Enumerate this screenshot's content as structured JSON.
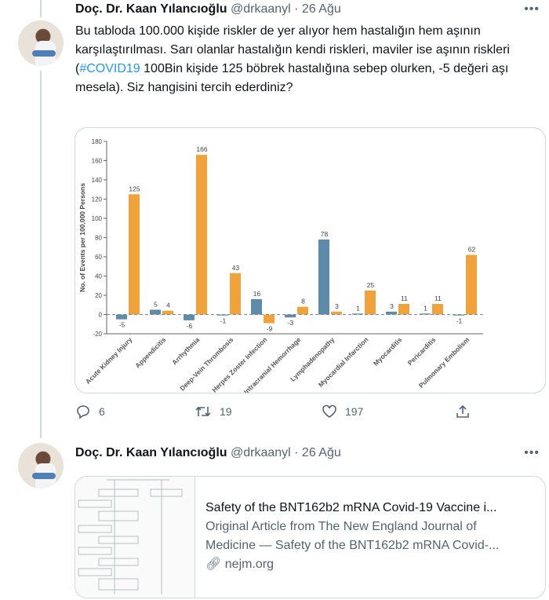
{
  "tweets": [
    {
      "author": "Doç. Dr. Kaan Yılancıoğlu",
      "handle": "@drkaanyl",
      "date": "· 26 Ağu",
      "text_before": "Bu tabloda 100.000 kişide riskler de yer alıyor hem hastalığın hem aşının karşılaştırılması. Sarı olanlar hastalığın kendi riskleri, maviler ise aşının riskleri (",
      "hashtag": "#COVID19",
      "text_after": " 100Bin kişide 125 böbrek hastalığına sebep olurken, -5 değeri aşı mesela). Siz hangisini tercih ederdiniz?",
      "actions": {
        "replies": "6",
        "retweets": "19",
        "likes": "197"
      },
      "more_icon": "ellipsis-icon"
    },
    {
      "author": "Doç. Dr. Kaan Yılancıoğlu",
      "handle": "@drkaanyl",
      "date": "· 26 Ağu",
      "link_card": {
        "title": "Safety of the BNT162b2 mRNA Covid-19 Vaccine i...",
        "description_1": "Original Article from The New England Journal of",
        "description_2": "Medicine — Safety of the BNT162b2 mRNA Covid-...",
        "domain": "nejm.org"
      }
    }
  ],
  "colors": {
    "vaccine_blue": "#5e8ca8",
    "disease_orange": "#f0a23b",
    "accent": "#1d9bf0"
  },
  "chart_data": {
    "type": "bar",
    "ylabel": "No. of Events per 100,000 Persons",
    "ylim": [
      -20,
      180
    ],
    "yticks": [
      -20,
      0,
      20,
      40,
      60,
      80,
      100,
      120,
      140,
      160,
      180
    ],
    "categories": [
      "Acute Kidney Injury",
      "Appendicitis",
      "Arrhythmia",
      "Deep-Vein Thrombosis",
      "Herpes Zoster Infection",
      "Intracranial Hemorrhage",
      "Lymphadenopathy",
      "Myocardial Infarction",
      "Myocarditis",
      "Pericarditis",
      "Pulmonary Embolism"
    ],
    "series": [
      {
        "color": "#5e8ca8",
        "values": [
          -5,
          5,
          -6,
          -1,
          16,
          -3,
          78,
          1,
          3,
          1,
          -1
        ]
      },
      {
        "color": "#f0a23b",
        "values": [
          125,
          4,
          166,
          43,
          -9,
          8,
          3,
          25,
          11,
          11,
          62
        ]
      }
    ],
    "zero_line": "dashed"
  }
}
